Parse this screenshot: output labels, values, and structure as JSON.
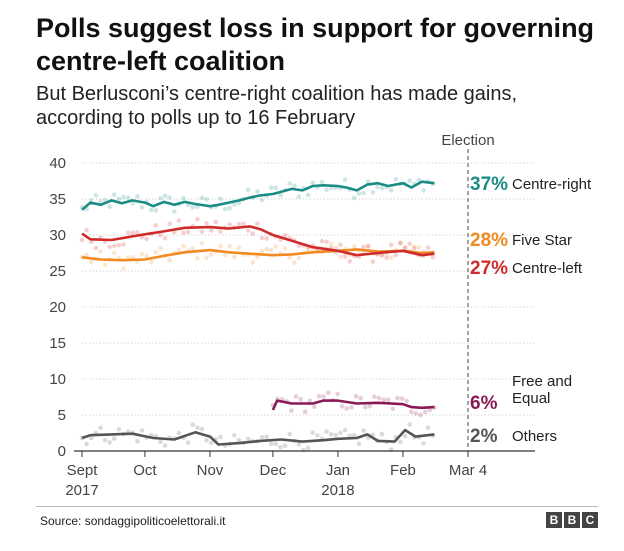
{
  "header": {
    "title": "Polls suggest loss in support for governing centre-left coalition",
    "subtitle": "But Berlusconi’s centre-right coalition has made gains, according to polls up to 16 February"
  },
  "footer": {
    "source": "Source: sondaggipoliticoelettorali.it",
    "logo_letters": [
      "B",
      "B",
      "C"
    ]
  },
  "chart_data": {
    "type": "line",
    "title": "Polls suggest loss in support for governing centre-left coalition",
    "subtitle": "But Berlusconi’s centre-right coalition has made gains, according to polls up to 16 February",
    "xlabel": "",
    "ylabel": "",
    "ylim": [
      0,
      40
    ],
    "yticks": [
      0,
      5,
      10,
      15,
      20,
      25,
      30,
      35,
      40
    ],
    "xlim": [
      "2017-09-01",
      "2018-03-04"
    ],
    "xticks": [
      {
        "date": "2017-09-01",
        "label": "Sept",
        "sublabel": "2017"
      },
      {
        "date": "2017-10-01",
        "label": "Oct",
        "sublabel": ""
      },
      {
        "date": "2017-11-01",
        "label": "Nov",
        "sublabel": ""
      },
      {
        "date": "2017-12-01",
        "label": "Dec",
        "sublabel": ""
      },
      {
        "date": "2018-01-01",
        "label": "Jan",
        "sublabel": "2018"
      },
      {
        "date": "2018-02-01",
        "label": "Feb",
        "sublabel": ""
      },
      {
        "date": "2018-03-04",
        "label": "Mar 4",
        "sublabel": ""
      }
    ],
    "grid": "horizontal",
    "legend": "right, direct labels",
    "annotations": [
      {
        "type": "vertical-dashed-line",
        "date": "2018-03-04",
        "label": "Election"
      }
    ],
    "series": [
      {
        "name": "Centre-right",
        "legend_lines": [
          "Centre-right"
        ],
        "final_label": "37%",
        "color": "#1b8c85",
        "points": [
          [
            "2017-09-01",
            33.5
          ],
          [
            "2017-09-05",
            34.5
          ],
          [
            "2017-09-10",
            34.2
          ],
          [
            "2017-09-15",
            34.8
          ],
          [
            "2017-09-20",
            34.4
          ],
          [
            "2017-09-25",
            34.8
          ],
          [
            "2017-10-01",
            34.5
          ],
          [
            "2017-10-05",
            34.0
          ],
          [
            "2017-10-10",
            34.6
          ],
          [
            "2017-10-15",
            34.2
          ],
          [
            "2017-10-20",
            34.6
          ],
          [
            "2017-10-25",
            34.3
          ],
          [
            "2017-11-01",
            34.0
          ],
          [
            "2017-11-05",
            34.2
          ],
          [
            "2017-11-10",
            34.5
          ],
          [
            "2017-11-15",
            34.8
          ],
          [
            "2017-11-20",
            35.2
          ],
          [
            "2017-11-25",
            35.5
          ],
          [
            "2017-12-01",
            35.7
          ],
          [
            "2017-12-05",
            36.0
          ],
          [
            "2017-12-10",
            36.4
          ],
          [
            "2017-12-15",
            36.2
          ],
          [
            "2017-12-20",
            36.8
          ],
          [
            "2017-12-25",
            36.9
          ],
          [
            "2018-01-01",
            36.8
          ],
          [
            "2018-01-05",
            36.6
          ],
          [
            "2018-01-10",
            36.2
          ],
          [
            "2018-01-15",
            37.0
          ],
          [
            "2018-01-20",
            37.2
          ],
          [
            "2018-01-25",
            36.8
          ],
          [
            "2018-02-01",
            37.2
          ],
          [
            "2018-02-05",
            36.6
          ],
          [
            "2018-02-10",
            37.4
          ],
          [
            "2018-02-16",
            37.2
          ]
        ]
      },
      {
        "name": "Five Star",
        "legend_lines": [
          "Five Star"
        ],
        "final_label": "28%",
        "color": "#f18a21",
        "points": [
          [
            "2017-09-01",
            26.9
          ],
          [
            "2017-09-10",
            26.6
          ],
          [
            "2017-09-20",
            26.5
          ],
          [
            "2017-10-01",
            26.6
          ],
          [
            "2017-10-10",
            27.1
          ],
          [
            "2017-10-20",
            27.6
          ],
          [
            "2017-11-01",
            27.9
          ],
          [
            "2017-11-10",
            27.6
          ],
          [
            "2017-11-20",
            27.4
          ],
          [
            "2017-12-01",
            27.2
          ],
          [
            "2017-12-10",
            27.3
          ],
          [
            "2017-12-20",
            27.6
          ],
          [
            "2018-01-01",
            27.8
          ],
          [
            "2018-01-10",
            28.0
          ],
          [
            "2018-01-20",
            27.7
          ],
          [
            "2018-02-01",
            27.8
          ],
          [
            "2018-02-10",
            27.5
          ],
          [
            "2018-02-16",
            27.6
          ]
        ]
      },
      {
        "name": "Centre-left",
        "legend_lines": [
          "Centre-left"
        ],
        "final_label": "27%",
        "color": "#cf2b2b",
        "points": [
          [
            "2017-09-01",
            30.2
          ],
          [
            "2017-09-05",
            29.4
          ],
          [
            "2017-09-15",
            29.3
          ],
          [
            "2017-09-25",
            29.8
          ],
          [
            "2017-10-01",
            30.1
          ],
          [
            "2017-10-10",
            30.5
          ],
          [
            "2017-10-20",
            31.0
          ],
          [
            "2017-11-01",
            31.1
          ],
          [
            "2017-11-10",
            30.9
          ],
          [
            "2017-11-20",
            31.2
          ],
          [
            "2017-11-25",
            30.8
          ],
          [
            "2017-12-01",
            30.0
          ],
          [
            "2017-12-10",
            29.2
          ],
          [
            "2017-12-20",
            28.3
          ],
          [
            "2018-01-01",
            27.8
          ],
          [
            "2018-01-10",
            27.2
          ],
          [
            "2018-01-20",
            27.5
          ],
          [
            "2018-02-01",
            27.8
          ],
          [
            "2018-02-10",
            27.2
          ],
          [
            "2018-02-16",
            27.4
          ]
        ]
      },
      {
        "name": "Free and Equal",
        "legend_lines": [
          "Free and",
          "Equal"
        ],
        "final_label": "6%",
        "color": "#8a1a56",
        "points": [
          [
            "2017-12-01",
            5.7
          ],
          [
            "2017-12-03",
            7.0
          ],
          [
            "2017-12-10",
            6.6
          ],
          [
            "2017-12-20",
            6.6
          ],
          [
            "2017-12-25",
            7.0
          ],
          [
            "2018-01-01",
            7.0
          ],
          [
            "2018-01-10",
            6.6
          ],
          [
            "2018-01-20",
            6.7
          ],
          [
            "2018-02-01",
            6.5
          ],
          [
            "2018-02-05",
            6.1
          ],
          [
            "2018-02-10",
            6.0
          ],
          [
            "2018-02-16",
            6.1
          ]
        ]
      },
      {
        "name": "Others",
        "legend_lines": [
          "Others"
        ],
        "final_label": "2%",
        "color": "#555555",
        "points": [
          [
            "2017-09-01",
            1.8
          ],
          [
            "2017-09-05",
            2.2
          ],
          [
            "2017-09-15",
            2.3
          ],
          [
            "2017-09-25",
            2.4
          ],
          [
            "2017-10-05",
            1.8
          ],
          [
            "2017-10-15",
            1.6
          ],
          [
            "2017-10-25",
            2.6
          ],
          [
            "2017-11-01",
            2.0
          ],
          [
            "2017-11-05",
            0.9
          ],
          [
            "2017-11-15",
            1.1
          ],
          [
            "2017-11-25",
            1.4
          ],
          [
            "2017-12-05",
            1.6
          ],
          [
            "2017-12-15",
            1.3
          ],
          [
            "2017-12-25",
            1.5
          ],
          [
            "2018-01-01",
            1.7
          ],
          [
            "2018-01-10",
            1.8
          ],
          [
            "2018-01-15",
            2.3
          ],
          [
            "2018-01-20",
            1.4
          ],
          [
            "2018-01-28",
            1.3
          ],
          [
            "2018-02-02",
            2.9
          ],
          [
            "2018-02-07",
            2.0
          ],
          [
            "2018-02-16",
            2.3
          ]
        ]
      }
    ]
  }
}
